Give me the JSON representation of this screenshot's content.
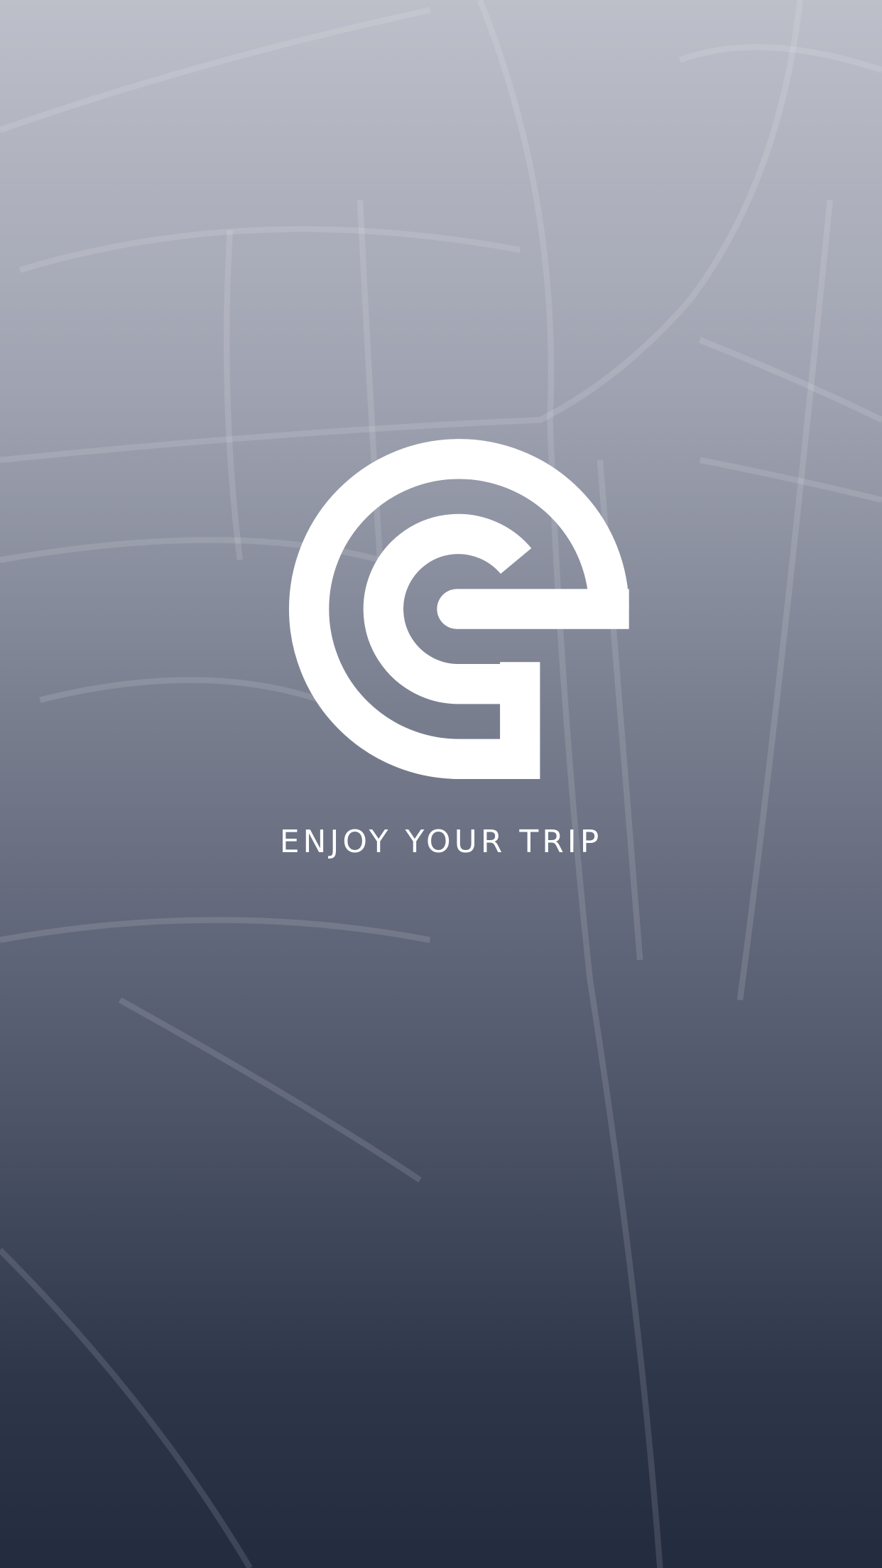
{
  "tagline": "ENJOY YOUR TRIP"
}
